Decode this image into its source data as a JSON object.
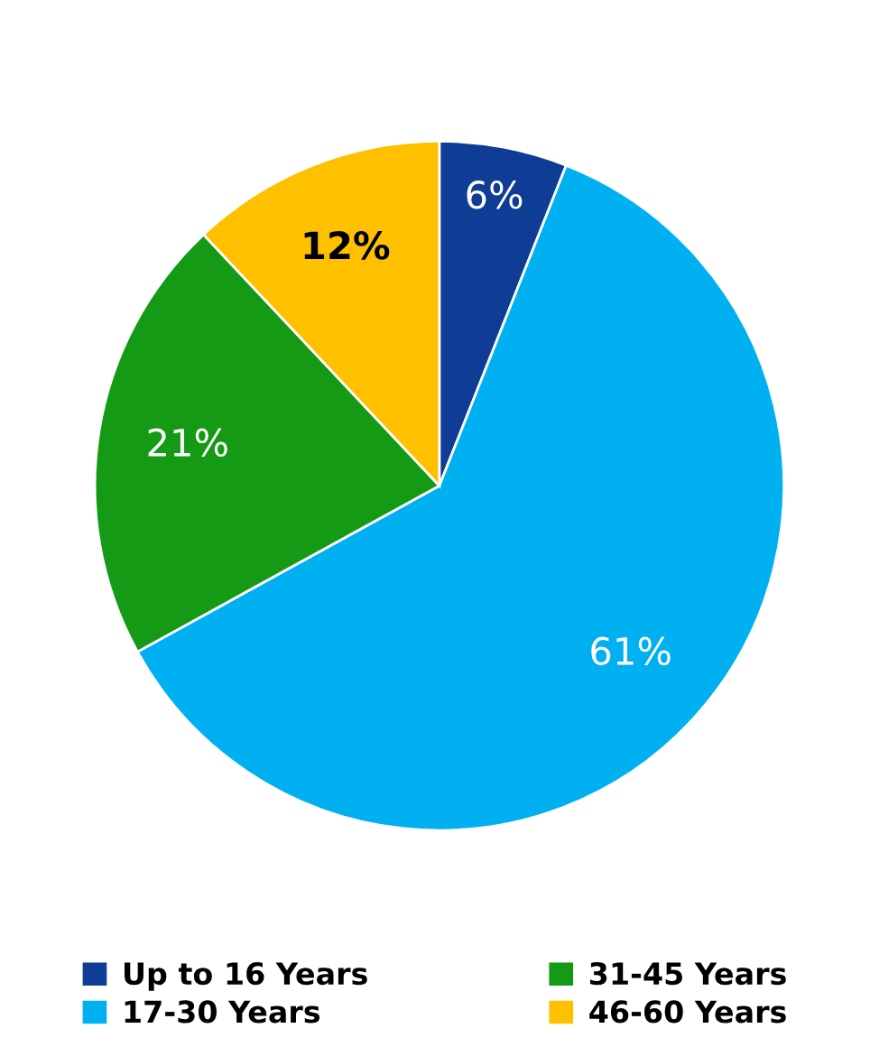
{
  "chart_data": {
    "type": "pie",
    "categories": [
      "Up to 16 Years",
      "17-30 Years",
      "31-45 Years",
      "46-60 Years"
    ],
    "values": [
      6,
      61,
      21,
      12
    ],
    "colors": [
      "#0f3c94",
      "#00b0f0",
      "#159a15",
      "#ffc000"
    ],
    "value_labels": [
      "6%",
      "61%",
      "21%",
      "12%"
    ],
    "legend": "bottom"
  }
}
